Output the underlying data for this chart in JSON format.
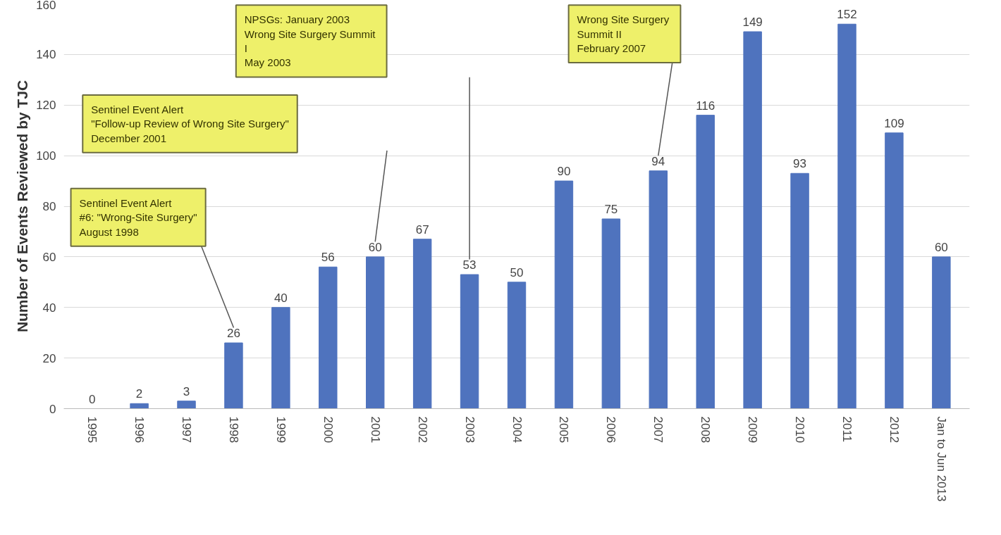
{
  "chart_data": {
    "type": "bar",
    "ylabel": "Number of Events Reviewed by TJC",
    "categories": [
      "1995",
      "1996",
      "1997",
      "1998",
      "1999",
      "2000",
      "2001",
      "2002",
      "2003",
      "2004",
      "2005",
      "2006",
      "2007",
      "2008",
      "2009",
      "2010",
      "2011",
      "2012",
      "Jan to Jun 2013"
    ],
    "values": [
      0,
      2,
      3,
      26,
      40,
      56,
      60,
      67,
      53,
      50,
      90,
      75,
      94,
      116,
      149,
      93,
      152,
      109,
      60
    ],
    "color": "#4f73be",
    "ylim": [
      0,
      160
    ],
    "yticks": [
      0,
      20,
      40,
      60,
      80,
      100,
      120,
      140,
      160
    ],
    "grid": "y",
    "data_labels": true,
    "annotations": [
      "Sentinel Event Alert\n#6: \"Wrong-Site Surgery\"\nAugust 1998",
      "Sentinel Event Alert\n\"Follow-up Review of Wrong Site Surgery\"\nDecember 2001",
      "NPSGs: January 2003\nWrong Site Surgery  Summit\nI\nMay 2003",
      "Wrong  Site Surgery\nSummit II\nFebruary 2007"
    ]
  }
}
